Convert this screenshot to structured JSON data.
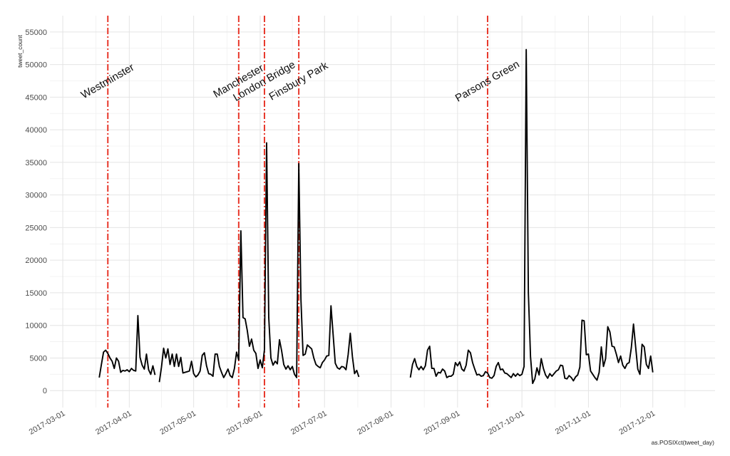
{
  "chart_data": {
    "type": "line",
    "title": "",
    "xlabel": "as.POSIXct(tweet_day)",
    "ylabel": "tweet_count",
    "xlim": [
      "2017-02-23",
      "2017-12-30"
    ],
    "ylim": [
      -2600,
      57500
    ],
    "grid": true,
    "legend": "none",
    "line_color": "#000000",
    "event_color": "#e8372a",
    "x_ticks": [
      "2017-03-01",
      "2017-04-01",
      "2017-05-01",
      "2017-06-01",
      "2017-07-01",
      "2017-08-01",
      "2017-09-01",
      "2017-10-01",
      "2017-11-01",
      "2017-12-01"
    ],
    "y_ticks": [
      0,
      5000,
      10000,
      15000,
      20000,
      25000,
      30000,
      35000,
      40000,
      45000,
      50000,
      55000
    ],
    "events": [
      {
        "date": "2017-03-22",
        "label": "Westminster"
      },
      {
        "date": "2017-05-22",
        "label": "Manchester"
      },
      {
        "date": "2017-06-03",
        "label": "London Bridge"
      },
      {
        "date": "2017-06-19",
        "label": "Finsbury Park"
      },
      {
        "date": "2017-09-15",
        "label": "Parsons Green"
      }
    ],
    "series": [
      {
        "segments": [
          [
            [
              "2017-03-18",
              2000
            ],
            [
              "2017-03-19",
              4000
            ],
            [
              "2017-03-20",
              5900
            ],
            [
              "2017-03-21",
              6200
            ],
            [
              "2017-03-22",
              5700
            ],
            [
              "2017-03-23",
              5000
            ],
            [
              "2017-03-24",
              4500
            ],
            [
              "2017-03-25",
              3400
            ],
            [
              "2017-03-26",
              5000
            ],
            [
              "2017-03-27",
              4500
            ],
            [
              "2017-03-28",
              2800
            ],
            [
              "2017-03-29",
              3100
            ],
            [
              "2017-03-30",
              3000
            ],
            [
              "2017-03-31",
              3200
            ],
            [
              "2017-04-01",
              2900
            ],
            [
              "2017-04-02",
              3400
            ],
            [
              "2017-04-03",
              3100
            ],
            [
              "2017-04-04",
              3000
            ],
            [
              "2017-04-05",
              11500
            ],
            [
              "2017-04-06",
              5100
            ],
            [
              "2017-04-07",
              3900
            ],
            [
              "2017-04-08",
              3300
            ],
            [
              "2017-04-09",
              5600
            ],
            [
              "2017-04-10",
              3200
            ],
            [
              "2017-04-11",
              2500
            ],
            [
              "2017-04-12",
              3800
            ],
            [
              "2017-04-13",
              2400
            ]
          ],
          [
            [
              "2017-04-15",
              1300
            ],
            [
              "2017-04-16",
              3600
            ],
            [
              "2017-04-17",
              6500
            ],
            [
              "2017-04-18",
              5000
            ],
            [
              "2017-04-19",
              6400
            ],
            [
              "2017-04-20",
              4000
            ],
            [
              "2017-04-21",
              5600
            ],
            [
              "2017-04-22",
              3700
            ],
            [
              "2017-04-23",
              5600
            ],
            [
              "2017-04-24",
              3700
            ],
            [
              "2017-04-25",
              5100
            ],
            [
              "2017-04-26",
              2700
            ],
            [
              "2017-04-27",
              2800
            ],
            [
              "2017-04-28",
              2900
            ],
            [
              "2017-04-29",
              3000
            ],
            [
              "2017-04-30",
              4500
            ],
            [
              "2017-05-01",
              2600
            ],
            [
              "2017-05-02",
              2100
            ],
            [
              "2017-05-03",
              2400
            ],
            [
              "2017-05-04",
              3000
            ],
            [
              "2017-05-05",
              5400
            ],
            [
              "2017-05-06",
              5800
            ],
            [
              "2017-05-07",
              3800
            ],
            [
              "2017-05-08",
              2600
            ],
            [
              "2017-05-09",
              2500
            ],
            [
              "2017-05-10",
              2200
            ],
            [
              "2017-05-11",
              5600
            ],
            [
              "2017-05-12",
              5600
            ],
            [
              "2017-05-13",
              3700
            ],
            [
              "2017-05-14",
              2800
            ],
            [
              "2017-05-15",
              2000
            ],
            [
              "2017-05-16",
              2600
            ],
            [
              "2017-05-17",
              3300
            ],
            [
              "2017-05-18",
              2300
            ],
            [
              "2017-05-19",
              2000
            ],
            [
              "2017-05-20",
              3400
            ],
            [
              "2017-05-21",
              5900
            ],
            [
              "2017-05-22",
              4700
            ],
            [
              "2017-05-23",
              24500
            ],
            [
              "2017-05-24",
              11200
            ],
            [
              "2017-05-25",
              11000
            ],
            [
              "2017-05-26",
              9200
            ],
            [
              "2017-05-27",
              6800
            ],
            [
              "2017-05-28",
              7900
            ],
            [
              "2017-05-29",
              6200
            ],
            [
              "2017-05-30",
              5700
            ],
            [
              "2017-05-31",
              3400
            ],
            [
              "2017-06-01",
              4700
            ],
            [
              "2017-06-02",
              3500
            ],
            [
              "2017-06-03",
              6300
            ],
            [
              "2017-06-04",
              38000
            ],
            [
              "2017-06-05",
              11200
            ],
            [
              "2017-06-06",
              5000
            ],
            [
              "2017-06-07",
              3900
            ],
            [
              "2017-06-08",
              4500
            ],
            [
              "2017-06-09",
              4100
            ],
            [
              "2017-06-10",
              7800
            ],
            [
              "2017-06-11",
              6100
            ],
            [
              "2017-06-12",
              4000
            ],
            [
              "2017-06-13",
              3300
            ],
            [
              "2017-06-14",
              3800
            ],
            [
              "2017-06-15",
              3200
            ],
            [
              "2017-06-16",
              3700
            ],
            [
              "2017-06-17",
              2500
            ],
            [
              "2017-06-18",
              2000
            ],
            [
              "2017-06-19",
              34800
            ],
            [
              "2017-06-20",
              14000
            ],
            [
              "2017-06-21",
              5400
            ],
            [
              "2017-06-22",
              5600
            ],
            [
              "2017-06-23",
              7000
            ],
            [
              "2017-06-24",
              6700
            ],
            [
              "2017-06-25",
              6400
            ],
            [
              "2017-06-26",
              5000
            ],
            [
              "2017-06-27",
              4000
            ],
            [
              "2017-06-28",
              3700
            ],
            [
              "2017-06-29",
              3500
            ],
            [
              "2017-06-30",
              4300
            ],
            [
              "2017-07-01",
              4700
            ],
            [
              "2017-07-02",
              5300
            ],
            [
              "2017-07-03",
              5400
            ],
            [
              "2017-07-04",
              13000
            ],
            [
              "2017-07-05",
              8600
            ],
            [
              "2017-07-06",
              4200
            ],
            [
              "2017-07-07",
              3500
            ],
            [
              "2017-07-08",
              3300
            ],
            [
              "2017-07-09",
              3700
            ],
            [
              "2017-07-10",
              3600
            ],
            [
              "2017-07-11",
              3200
            ],
            [
              "2017-07-12",
              5500
            ],
            [
              "2017-07-13",
              8800
            ],
            [
              "2017-07-14",
              5200
            ],
            [
              "2017-07-15",
              2600
            ],
            [
              "2017-07-16",
              3100
            ],
            [
              "2017-07-17",
              2100
            ]
          ],
          [
            [
              "2017-08-10",
              2000
            ],
            [
              "2017-08-11",
              4000
            ],
            [
              "2017-08-12",
              4900
            ],
            [
              "2017-08-13",
              3700
            ],
            [
              "2017-08-14",
              3200
            ],
            [
              "2017-08-15",
              3700
            ],
            [
              "2017-08-16",
              3200
            ],
            [
              "2017-08-17",
              3800
            ],
            [
              "2017-08-18",
              6200
            ],
            [
              "2017-08-19",
              6800
            ],
            [
              "2017-08-20",
              3400
            ],
            [
              "2017-08-21",
              3400
            ],
            [
              "2017-08-22",
              2200
            ],
            [
              "2017-08-23",
              2800
            ],
            [
              "2017-08-24",
              2700
            ],
            [
              "2017-08-25",
              3300
            ],
            [
              "2017-08-26",
              3000
            ],
            [
              "2017-08-27",
              2000
            ],
            [
              "2017-08-28",
              2200
            ],
            [
              "2017-08-29",
              2200
            ],
            [
              "2017-08-30",
              2500
            ],
            [
              "2017-08-31",
              4300
            ],
            [
              "2017-09-01",
              3800
            ],
            [
              "2017-09-02",
              4400
            ],
            [
              "2017-09-03",
              3300
            ],
            [
              "2017-09-04",
              3000
            ],
            [
              "2017-09-05",
              3900
            ],
            [
              "2017-09-06",
              6200
            ],
            [
              "2017-09-07",
              5800
            ],
            [
              "2017-09-08",
              4300
            ],
            [
              "2017-09-09",
              3300
            ],
            [
              "2017-09-10",
              2400
            ],
            [
              "2017-09-11",
              2500
            ],
            [
              "2017-09-12",
              2200
            ],
            [
              "2017-09-13",
              2300
            ],
            [
              "2017-09-14",
              2900
            ],
            [
              "2017-09-15",
              2700
            ],
            [
              "2017-09-16",
              2000
            ],
            [
              "2017-09-17",
              1900
            ],
            [
              "2017-09-18",
              2300
            ],
            [
              "2017-09-19",
              3700
            ],
            [
              "2017-09-20",
              4300
            ],
            [
              "2017-09-21",
              3200
            ],
            [
              "2017-09-22",
              3300
            ],
            [
              "2017-09-23",
              2700
            ],
            [
              "2017-09-24",
              2600
            ],
            [
              "2017-09-25",
              2300
            ],
            [
              "2017-09-26",
              2000
            ],
            [
              "2017-09-27",
              2600
            ],
            [
              "2017-09-28",
              2200
            ],
            [
              "2017-09-29",
              2600
            ],
            [
              "2017-09-30",
              2300
            ],
            [
              "2017-10-01",
              2500
            ],
            [
              "2017-10-02",
              3700
            ],
            [
              "2017-10-03",
              52300
            ],
            [
              "2017-10-04",
              15000
            ],
            [
              "2017-10-05",
              5200
            ],
            [
              "2017-10-06",
              1100
            ],
            [
              "2017-10-07",
              1800
            ],
            [
              "2017-10-08",
              3500
            ],
            [
              "2017-10-09",
              2400
            ],
            [
              "2017-10-10",
              4900
            ],
            [
              "2017-10-11",
              3400
            ],
            [
              "2017-10-12",
              2400
            ],
            [
              "2017-10-13",
              1900
            ],
            [
              "2017-10-14",
              2600
            ],
            [
              "2017-10-15",
              2200
            ],
            [
              "2017-10-16",
              2600
            ],
            [
              "2017-10-17",
              3000
            ],
            [
              "2017-10-18",
              3200
            ],
            [
              "2017-10-19",
              3900
            ],
            [
              "2017-10-20",
              3800
            ],
            [
              "2017-10-21",
              1900
            ],
            [
              "2017-10-22",
              1800
            ],
            [
              "2017-10-23",
              2300
            ],
            [
              "2017-10-24",
              2000
            ],
            [
              "2017-10-25",
              1500
            ],
            [
              "2017-10-26",
              2100
            ],
            [
              "2017-10-27",
              2400
            ],
            [
              "2017-10-28",
              3600
            ],
            [
              "2017-10-29",
              10800
            ],
            [
              "2017-10-30",
              10700
            ],
            [
              "2017-10-31",
              5500
            ],
            [
              "2017-11-01",
              5600
            ],
            [
              "2017-11-02",
              3000
            ],
            [
              "2017-11-03",
              2500
            ],
            [
              "2017-11-04",
              2000
            ],
            [
              "2017-11-05",
              1600
            ],
            [
              "2017-11-06",
              2800
            ],
            [
              "2017-11-07",
              6700
            ],
            [
              "2017-11-08",
              3700
            ],
            [
              "2017-11-09",
              4900
            ],
            [
              "2017-11-10",
              9800
            ],
            [
              "2017-11-11",
              9000
            ],
            [
              "2017-11-12",
              6800
            ],
            [
              "2017-11-13",
              6700
            ],
            [
              "2017-11-14",
              5600
            ],
            [
              "2017-11-15",
              4300
            ],
            [
              "2017-11-16",
              5300
            ],
            [
              "2017-11-17",
              3900
            ],
            [
              "2017-11-18",
              3400
            ],
            [
              "2017-11-19",
              4100
            ],
            [
              "2017-11-20",
              4300
            ],
            [
              "2017-11-21",
              6600
            ],
            [
              "2017-11-22",
              10200
            ],
            [
              "2017-11-23",
              6700
            ],
            [
              "2017-11-24",
              3300
            ],
            [
              "2017-11-25",
              2500
            ],
            [
              "2017-11-26",
              7100
            ],
            [
              "2017-11-27",
              6700
            ],
            [
              "2017-11-28",
              4000
            ],
            [
              "2017-11-29",
              3400
            ],
            [
              "2017-11-30",
              5300
            ],
            [
              "2017-12-01",
              2800
            ]
          ]
        ]
      }
    ]
  }
}
